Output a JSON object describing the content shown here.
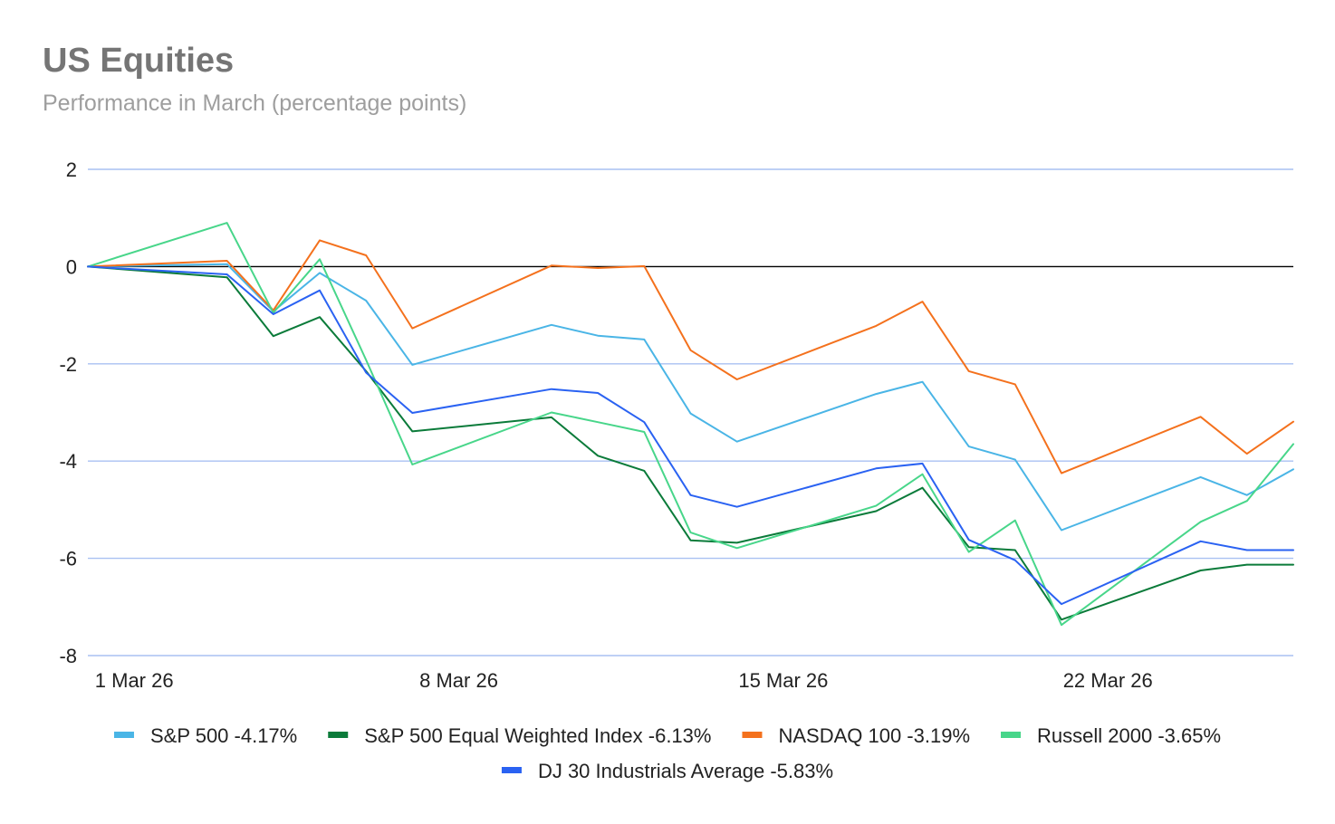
{
  "colors": {
    "grid": "#a9c1f2",
    "zero": "#000000"
  },
  "chart_data": {
    "type": "line",
    "title": "US Equities",
    "subtitle": "Performance in March (percentage points)",
    "xlabel": "",
    "ylabel": "",
    "ylim": [
      -8,
      2
    ],
    "yticks": [
      2,
      0,
      -2,
      -4,
      -6,
      -8
    ],
    "x": [
      "28 Feb 26",
      "2 Mar 26",
      "3 Mar 26",
      "4 Mar 26",
      "5 Mar 26",
      "6 Mar 26",
      "9 Mar 26",
      "10 Mar 26",
      "11 Mar 26",
      "12 Mar 26",
      "13 Mar 26",
      "16 Mar 26",
      "17 Mar 26",
      "18 Mar 26",
      "19 Mar 26",
      "20 Mar 26",
      "23 Mar 26",
      "24 Mar 26",
      "25 Mar 26"
    ],
    "x_ticks": [
      {
        "label": "1 Mar 26",
        "day": 1
      },
      {
        "label": "8 Mar 26",
        "day": 8
      },
      {
        "label": "15 Mar 26",
        "day": 15
      },
      {
        "label": "22 Mar 26",
        "day": 22
      }
    ],
    "x_days": [
      0,
      3,
      4,
      5,
      6,
      7,
      10,
      11,
      12,
      13,
      14,
      17,
      18,
      19,
      20,
      21,
      24,
      25,
      26
    ],
    "x_range": [
      0,
      26
    ],
    "grid": true,
    "legend_position": "bottom",
    "series": [
      {
        "name": "S&P 500 -4.17%",
        "color": "#4ab5e6",
        "values": [
          0,
          0.05,
          -0.92,
          -0.13,
          -0.7,
          -2.02,
          -1.2,
          -1.42,
          -1.5,
          -3.02,
          -3.6,
          -2.62,
          -2.37,
          -3.7,
          -3.97,
          -5.42,
          -4.33,
          -4.7,
          -4.17
        ]
      },
      {
        "name": "S&P 500 Equal Weighted Index -6.13%",
        "color": "#0b7b3a",
        "values": [
          0,
          -0.22,
          -1.43,
          -1.04,
          -2.15,
          -3.39,
          -3.1,
          -3.89,
          -4.2,
          -5.63,
          -5.68,
          -5.03,
          -4.55,
          -5.77,
          -5.83,
          -7.26,
          -6.25,
          -6.13,
          -6.13
        ]
      },
      {
        "name": "NASDAQ 100 -3.19%",
        "color": "#f4711d",
        "values": [
          0,
          0.12,
          -0.9,
          0.54,
          0.23,
          -1.27,
          0.02,
          -0.03,
          0.01,
          -1.72,
          -2.32,
          -1.22,
          -0.72,
          -2.15,
          -2.42,
          -4.25,
          -3.09,
          -3.85,
          -3.19
        ]
      },
      {
        "name": "Russell 2000 -3.65%",
        "color": "#48d68a",
        "values": [
          0,
          0.9,
          -0.95,
          0.15,
          -1.92,
          -4.07,
          -3.0,
          -3.2,
          -3.4,
          -5.47,
          -5.79,
          -4.92,
          -4.27,
          -5.87,
          -5.22,
          -7.37,
          -5.25,
          -4.82,
          -3.65
        ]
      },
      {
        "name": "DJ 30 Industrials Average -5.83%",
        "color": "#2a62f2",
        "values": [
          0,
          -0.16,
          -0.98,
          -0.49,
          -2.18,
          -3.01,
          -2.52,
          -2.6,
          -3.2,
          -4.7,
          -4.94,
          -4.15,
          -4.05,
          -5.62,
          -6.04,
          -6.94,
          -5.65,
          -5.83,
          -5.83
        ]
      }
    ]
  }
}
